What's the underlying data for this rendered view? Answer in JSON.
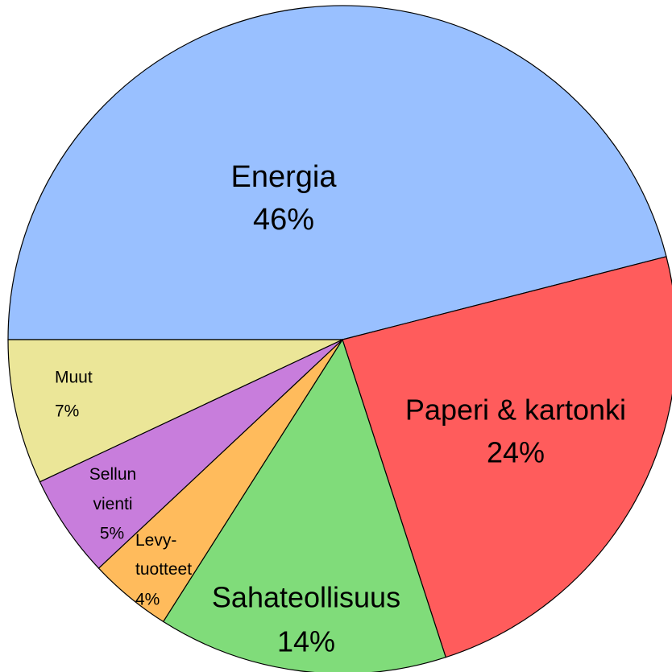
{
  "chart_data": {
    "type": "pie",
    "categories": [
      "Energia",
      "Paperi & kartonki",
      "Sahateollisuus",
      "Levy-tuotteet",
      "Sellun vienti",
      "Muut"
    ],
    "values": [
      46,
      24,
      14,
      4,
      5,
      7
    ],
    "value_labels": [
      "46%",
      "24%",
      "14%",
      "4%",
      "5%",
      "7%"
    ],
    "colors": [
      "#99c0ff",
      "#ff5c5c",
      "#80dc7a",
      "#ffbb5c",
      "#c87ddc",
      "#ebe698"
    ]
  }
}
